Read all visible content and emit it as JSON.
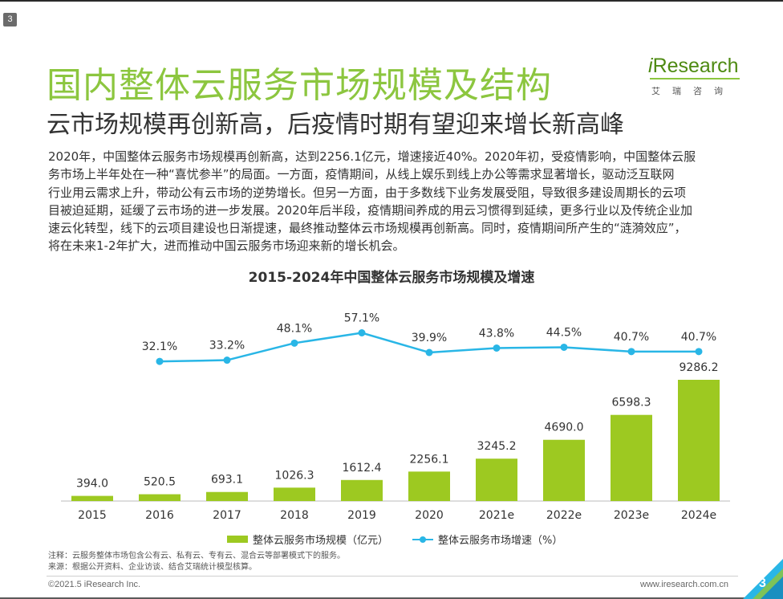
{
  "page_badge": "3",
  "title": "国内整体云服务市场规模及结构",
  "subtitle": "云市场规模再创新高，后疫情时期有望迎来增长新高峰",
  "logo": {
    "text_prefix": "i",
    "text_main": "Research",
    "sub": "艾瑞咨询"
  },
  "body_lines": [
    "2020年，中国整体云服务市场规模再创新高，达到2256.1亿元，增速接近40%。2020年初，受疫情影响，中国整体云服",
    "务市场上半年处在一种“喜忧参半”的局面。一方面，疫情期间，从线上娱乐到线上办公等需求显著增长，驱动泛互联网",
    "行业用云需求上升，带动公有云市场的逆势增长。但另一方面，由于多数线下业务发展受阻，导致很多建设周期长的云项",
    "目被迫延期，延缓了云市场的进一步发展。2020年后半段，疫情期间养成的用云习惯得到延续，更多行业以及传统企业加",
    "速云化转型，线下的云项目建设也日渐提速，最终推动整体云市场规模再创新高。同时，疫情期间所产生的“涟漪效应”，",
    "将在未来1-2年扩大，进而推动中国云服务市场迎来新的增长机会。"
  ],
  "chart_data": {
    "type": "bar",
    "title": "2015-2024年中国整体云服务市场规模及增速",
    "categories": [
      "2015",
      "2016",
      "2017",
      "2018",
      "2019",
      "2020",
      "2021e",
      "2022e",
      "2023e",
      "2024e"
    ],
    "series": [
      {
        "name": "整体云服务市场规模（亿元）",
        "type": "bar",
        "color": "#9dc921",
        "values": [
          394.0,
          520.5,
          693.1,
          1026.3,
          1612.4,
          2256.1,
          3245.2,
          4690.0,
          6598.3,
          9286.2
        ],
        "labels": [
          "394.0",
          "520.5",
          "693.1",
          "1026.3",
          "1612.4",
          "2256.1",
          "3245.2",
          "4690.0",
          "6598.3",
          "9286.2"
        ]
      },
      {
        "name": "整体云服务市场增速（%）",
        "type": "line",
        "color": "#29b6e6",
        "values": [
          null,
          32.1,
          33.2,
          48.1,
          57.1,
          39.9,
          43.8,
          44.5,
          40.7,
          40.7
        ],
        "labels": [
          "",
          "32.1%",
          "33.2%",
          "48.1%",
          "57.1%",
          "39.9%",
          "43.8%",
          "44.5%",
          "40.7%",
          "40.7%"
        ]
      }
    ],
    "grid": false,
    "legend": "bottom"
  },
  "legend": {
    "bar_label": "整体云服务市场规模（亿元）",
    "line_label": "整体云服务市场增速（%）"
  },
  "notes": [
    "注释：云服务整体市场包含公有云、私有云、专有云、混合云等部署模式下的服务。",
    "来源：根据公开资料、企业访谈、结合艾瑞统计模型核算。"
  ],
  "footer": {
    "copyright": "©2021.5 iResearch Inc.",
    "website": "www.iresearch.com.cn",
    "page_number": "3"
  }
}
